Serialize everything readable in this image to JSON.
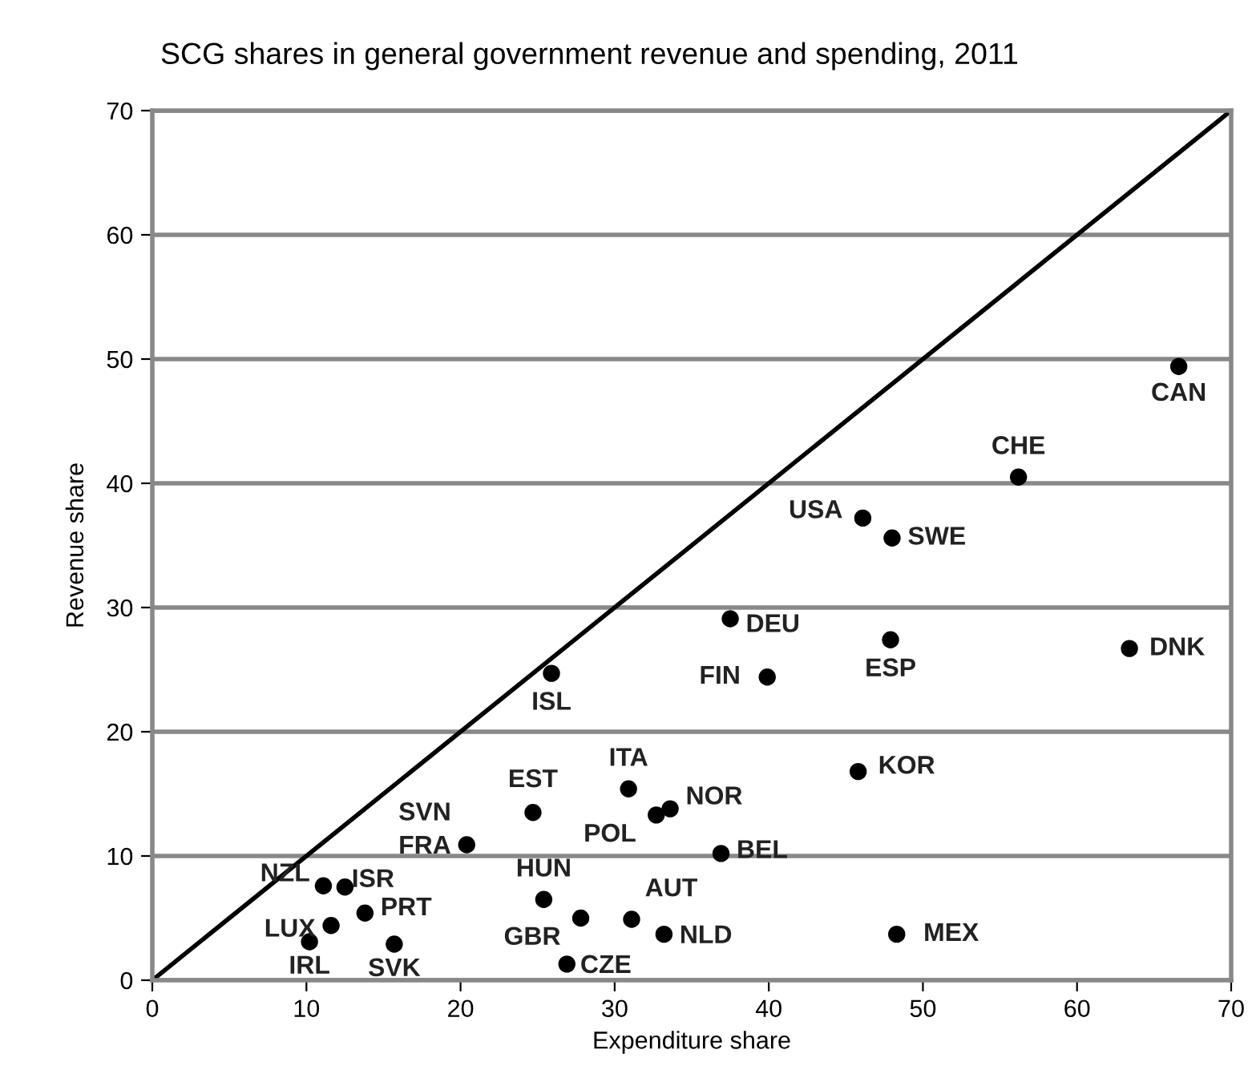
{
  "chart_data": {
    "type": "scatter",
    "title": "SCG shares in general government revenue and spending, 2011",
    "xlabel": "Expenditure share",
    "ylabel": "Revenue share",
    "xlim": [
      0,
      70
    ],
    "ylim": [
      0,
      70
    ],
    "xticks": [
      0,
      10,
      20,
      30,
      40,
      50,
      60,
      70
    ],
    "yticks": [
      0,
      10,
      20,
      30,
      40,
      50,
      60,
      70
    ],
    "grid": "y",
    "legend": false,
    "series": [
      {
        "color": "#000000",
        "marker": "circle",
        "x": [
          66.6,
          56.2,
          46.1,
          48.0,
          37.5,
          47.9,
          63.4,
          39.9,
          25.9,
          45.8,
          30.9,
          33.6,
          32.7,
          36.9,
          24.7,
          20.4,
          11.1,
          12.5,
          11.6,
          10.2,
          13.8,
          15.7,
          25.4,
          27.8,
          31.1,
          26.9,
          33.2,
          48.3
        ],
        "values": [
          49.4,
          40.5,
          37.2,
          35.6,
          29.1,
          27.4,
          26.7,
          24.4,
          24.7,
          16.8,
          15.4,
          13.8,
          13.3,
          10.2,
          13.5,
          10.9,
          7.6,
          7.5,
          4.4,
          3.1,
          5.4,
          2.9,
          6.5,
          5.0,
          4.9,
          1.3,
          3.7,
          3.7
        ]
      },
      {
        "type": "line",
        "color": "#000000",
        "marker": "none",
        "line_style": "solid",
        "x": [
          0,
          70
        ],
        "values": [
          0,
          70
        ]
      }
    ],
    "annotations": [
      {
        "text": "CAN",
        "x": 66.6,
        "y": 49.4
      },
      {
        "text": "CHE",
        "x": 56.2,
        "y": 40.5
      },
      {
        "text": "USA",
        "x": 46.1,
        "y": 37.2
      },
      {
        "text": "SWE",
        "x": 48.0,
        "y": 35.6
      },
      {
        "text": "DEU",
        "x": 37.5,
        "y": 29.1
      },
      {
        "text": "ESP",
        "x": 47.9,
        "y": 27.4
      },
      {
        "text": "DNK",
        "x": 63.4,
        "y": 26.7
      },
      {
        "text": "FIN",
        "x": 39.9,
        "y": 24.4
      },
      {
        "text": "ISL",
        "x": 25.9,
        "y": 24.7
      },
      {
        "text": "KOR",
        "x": 45.8,
        "y": 16.8
      },
      {
        "text": "ITA",
        "x": 30.9,
        "y": 15.4
      },
      {
        "text": "NOR",
        "x": 33.6,
        "y": 13.8
      },
      {
        "text": "POL",
        "x": 32.7,
        "y": 13.3
      },
      {
        "text": "BEL",
        "x": 36.9,
        "y": 10.2
      },
      {
        "text": "EST",
        "x": 24.7,
        "y": 13.5
      },
      {
        "text": "SVN",
        "x": 20.4,
        "y": 10.9
      },
      {
        "text": "FRA",
        "x": 20.4,
        "y": 10.9
      },
      {
        "text": "NZL",
        "x": 11.1,
        "y": 7.6
      },
      {
        "text": "ISR",
        "x": 12.5,
        "y": 7.5
      },
      {
        "text": "LUX",
        "x": 11.6,
        "y": 4.4
      },
      {
        "text": "IRL",
        "x": 10.2,
        "y": 3.1
      },
      {
        "text": "PRT",
        "x": 13.8,
        "y": 5.4
      },
      {
        "text": "SVK",
        "x": 15.7,
        "y": 2.9
      },
      {
        "text": "HUN",
        "x": 25.4,
        "y": 6.5
      },
      {
        "text": "GBR",
        "x": 27.8,
        "y": 5.0
      },
      {
        "text": "AUT",
        "x": 31.1,
        "y": 4.9
      },
      {
        "text": "CZE",
        "x": 26.9,
        "y": 1.3
      },
      {
        "text": "NLD",
        "x": 33.2,
        "y": 3.7
      },
      {
        "text": "MEX",
        "x": 48.3,
        "y": 3.7
      }
    ]
  }
}
